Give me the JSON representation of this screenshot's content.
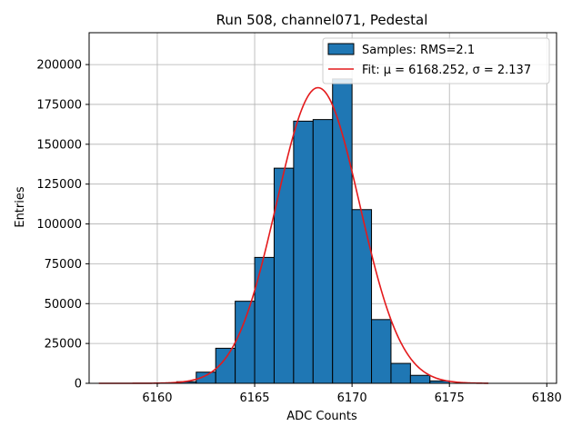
{
  "chart_data": {
    "type": "bar",
    "title": "Run 508, channel071, Pedestal",
    "xlabel": "ADC Counts",
    "ylabel": "Entries",
    "xlim": [
      6156.5,
      6180.5
    ],
    "ylim": [
      0,
      220000
    ],
    "grid": true,
    "legend_position": "top-right",
    "x_ticks": [
      6160,
      6165,
      6170,
      6175,
      6180
    ],
    "y_ticks": [
      0,
      25000,
      50000,
      75000,
      100000,
      125000,
      150000,
      175000,
      200000
    ],
    "bins": [
      {
        "left": 6161,
        "right": 6162,
        "value": 1000
      },
      {
        "left": 6162,
        "right": 6163,
        "value": 7000
      },
      {
        "left": 6163,
        "right": 6164,
        "value": 22000
      },
      {
        "left": 6164,
        "right": 6165,
        "value": 51500
      },
      {
        "left": 6165,
        "right": 6166,
        "value": 79000
      },
      {
        "left": 6166,
        "right": 6167,
        "value": 135000
      },
      {
        "left": 6167,
        "right": 6168,
        "value": 164500
      },
      {
        "left": 6168,
        "right": 6169,
        "value": 165500
      },
      {
        "left": 6169,
        "right": 6170,
        "value": 191000
      },
      {
        "left": 6170,
        "right": 6171,
        "value": 109000
      },
      {
        "left": 6171,
        "right": 6172,
        "value": 40000
      },
      {
        "left": 6172,
        "right": 6173,
        "value": 12500
      },
      {
        "left": 6173,
        "right": 6174,
        "value": 5000
      },
      {
        "left": 6174,
        "right": 6175,
        "value": 1500
      }
    ],
    "fit": {
      "mu": 6168.252,
      "sigma": 2.137,
      "amplitude": 185500,
      "x_range": [
        6157,
        6177
      ]
    },
    "legend": [
      {
        "label": "Samples: RMS=2.1",
        "kind": "patch"
      },
      {
        "label": "Fit: μ = 6168.252, σ = 2.137",
        "kind": "line"
      }
    ],
    "colors": {
      "bar_fill": "#1f77b4",
      "bar_edge": "#000000",
      "fit_line": "#e41a1c",
      "grid": "#b0b0b0"
    }
  }
}
